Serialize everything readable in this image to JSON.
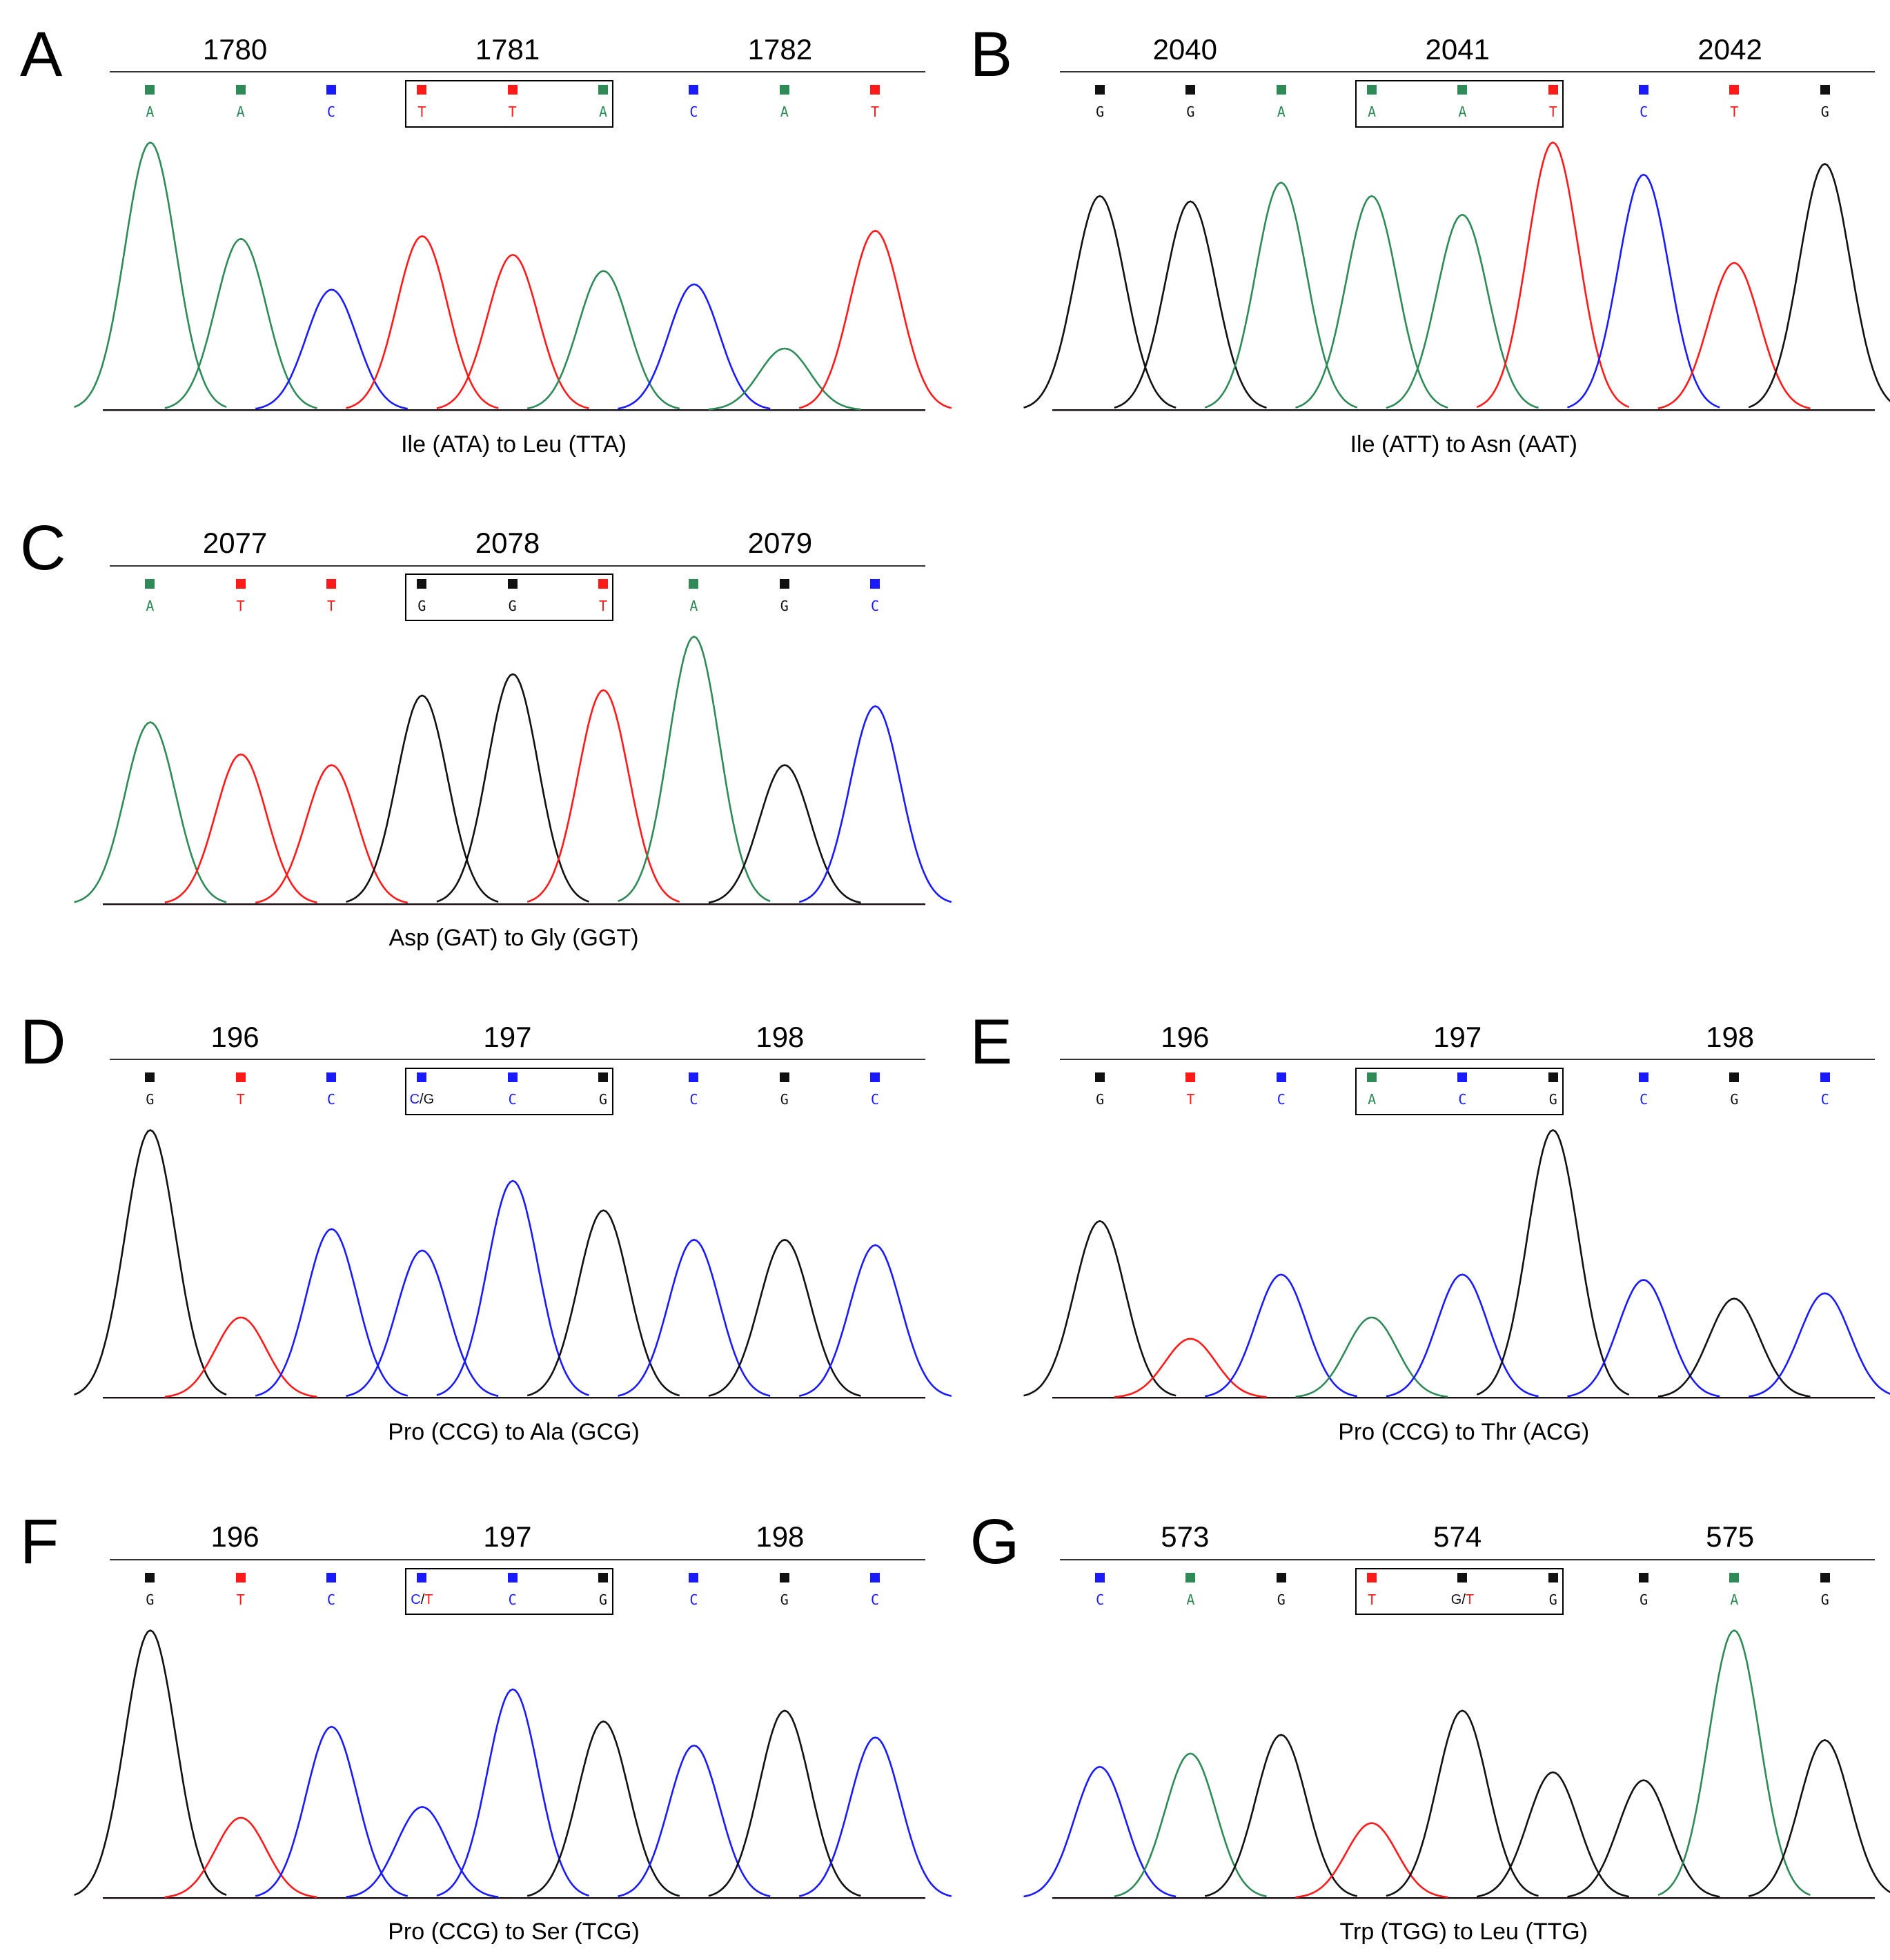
{
  "colors": {
    "A": "#2e8b57",
    "T": "#ff1a1a",
    "C": "#1a1aff",
    "G": "#111111"
  },
  "panels": [
    {
      "letter": "A",
      "codon_numbers": [
        "1780",
        "1781",
        "1782"
      ],
      "bases": [
        {
          "call": "A",
          "color": "A"
        },
        {
          "call": "A",
          "color": "A"
        },
        {
          "call": "C",
          "color": "C"
        },
        {
          "call": "T",
          "color": "T",
          "boxed": true
        },
        {
          "call": "T",
          "color": "T",
          "boxed": true
        },
        {
          "call": "A",
          "color": "A",
          "boxed": true
        },
        {
          "call": "C",
          "color": "C"
        },
        {
          "call": "A",
          "color": "A"
        },
        {
          "call": "T",
          "color": "T"
        }
      ],
      "peak_heights": [
        1.0,
        0.64,
        0.45,
        0.65,
        0.58,
        0.52,
        0.47,
        0.23,
        0.67
      ],
      "caption": "Ile (ATA) to Leu (TTA)"
    },
    {
      "letter": "B",
      "codon_numbers": [
        "2040",
        "2041",
        "2042"
      ],
      "bases": [
        {
          "call": "G",
          "color": "G"
        },
        {
          "call": "G",
          "color": "G"
        },
        {
          "call": "A",
          "color": "A"
        },
        {
          "call": "A",
          "color": "A",
          "boxed": true
        },
        {
          "call": "A",
          "color": "A",
          "boxed": true
        },
        {
          "call": "T",
          "color": "T",
          "boxed": true
        },
        {
          "call": "C",
          "color": "C"
        },
        {
          "call": "T",
          "color": "T"
        },
        {
          "call": "G",
          "color": "G"
        }
      ],
      "peak_heights": [
        0.8,
        0.78,
        0.85,
        0.8,
        0.73,
        1.0,
        0.88,
        0.55,
        0.92
      ],
      "caption": "Ile (ATT) to Asn (AAT)"
    },
    {
      "letter": "C",
      "codon_numbers": [
        "2077",
        "2078",
        "2079"
      ],
      "bases": [
        {
          "call": "A",
          "color": "A"
        },
        {
          "call": "T",
          "color": "T"
        },
        {
          "call": "T",
          "color": "T"
        },
        {
          "call": "G",
          "color": "G",
          "boxed": true
        },
        {
          "call": "G",
          "color": "G",
          "boxed": true
        },
        {
          "call": "T",
          "color": "T",
          "boxed": true
        },
        {
          "call": "A",
          "color": "A"
        },
        {
          "call": "G",
          "color": "G"
        },
        {
          "call": "C",
          "color": "C"
        }
      ],
      "peak_heights": [
        0.68,
        0.56,
        0.52,
        0.78,
        0.86,
        0.8,
        1.0,
        0.52,
        0.74
      ],
      "caption": "Asp (GAT) to Gly (GGT)"
    },
    {
      "letter": "D",
      "codon_numbers": [
        "196",
        "197",
        "198"
      ],
      "bases": [
        {
          "call": "G",
          "color": "G"
        },
        {
          "call": "T",
          "color": "T"
        },
        {
          "call": "C",
          "color": "C"
        },
        {
          "call": "C/G",
          "color": "C",
          "boxed": true
        },
        {
          "call": "C",
          "color": "C",
          "boxed": true
        },
        {
          "call": "G",
          "color": "G",
          "boxed": true
        },
        {
          "call": "C",
          "color": "C"
        },
        {
          "call": "G",
          "color": "G"
        },
        {
          "call": "C",
          "color": "C"
        }
      ],
      "peak_heights": [
        1.0,
        0.3,
        0.63,
        0.55,
        0.81,
        0.7,
        0.59,
        0.59,
        0.57
      ],
      "caption": "Pro (CCG) to Ala (GCG)"
    },
    {
      "letter": "E",
      "codon_numbers": [
        "196",
        "197",
        "198"
      ],
      "bases": [
        {
          "call": "G",
          "color": "G"
        },
        {
          "call": "T",
          "color": "T"
        },
        {
          "call": "C",
          "color": "C"
        },
        {
          "call": "A",
          "color": "A",
          "boxed": true
        },
        {
          "call": "C",
          "color": "C",
          "boxed": true
        },
        {
          "call": "G",
          "color": "G",
          "boxed": true
        },
        {
          "call": "C",
          "color": "C"
        },
        {
          "call": "G",
          "color": "G"
        },
        {
          "call": "C",
          "color": "C"
        }
      ],
      "peak_heights": [
        0.66,
        0.22,
        0.46,
        0.3,
        0.46,
        1.0,
        0.44,
        0.37,
        0.39
      ],
      "caption": "Pro (CCG) to Thr (ACG)"
    },
    {
      "letter": "F",
      "codon_numbers": [
        "196",
        "197",
        "198"
      ],
      "bases": [
        {
          "call": "G",
          "color": "G"
        },
        {
          "call": "T",
          "color": "T"
        },
        {
          "call": "C",
          "color": "C"
        },
        {
          "call": "C/T",
          "color": "C",
          "boxed": true
        },
        {
          "call": "C",
          "color": "C",
          "boxed": true
        },
        {
          "call": "G",
          "color": "G",
          "boxed": true
        },
        {
          "call": "C",
          "color": "C"
        },
        {
          "call": "G",
          "color": "G"
        },
        {
          "call": "C",
          "color": "C"
        }
      ],
      "peak_heights": [
        1.0,
        0.3,
        0.64,
        0.34,
        0.78,
        0.66,
        0.57,
        0.7,
        0.6
      ],
      "caption": "Pro (CCG) to Ser (TCG)"
    },
    {
      "letter": "G",
      "codon_numbers": [
        "573",
        "574",
        "575"
      ],
      "bases": [
        {
          "call": "C",
          "color": "C"
        },
        {
          "call": "A",
          "color": "A"
        },
        {
          "call": "G",
          "color": "G"
        },
        {
          "call": "T",
          "color": "T",
          "boxed": true
        },
        {
          "call": "G/T",
          "color": "G",
          "boxed": true
        },
        {
          "call": "G",
          "color": "G",
          "boxed": true
        },
        {
          "call": "G",
          "color": "G"
        },
        {
          "call": "A",
          "color": "A"
        },
        {
          "call": "G",
          "color": "G"
        }
      ],
      "peak_heights": [
        0.49,
        0.54,
        0.61,
        0.28,
        0.7,
        0.47,
        0.44,
        1.0,
        0.59
      ],
      "caption": "Trp (TGG) to Leu (TTG)"
    }
  ]
}
